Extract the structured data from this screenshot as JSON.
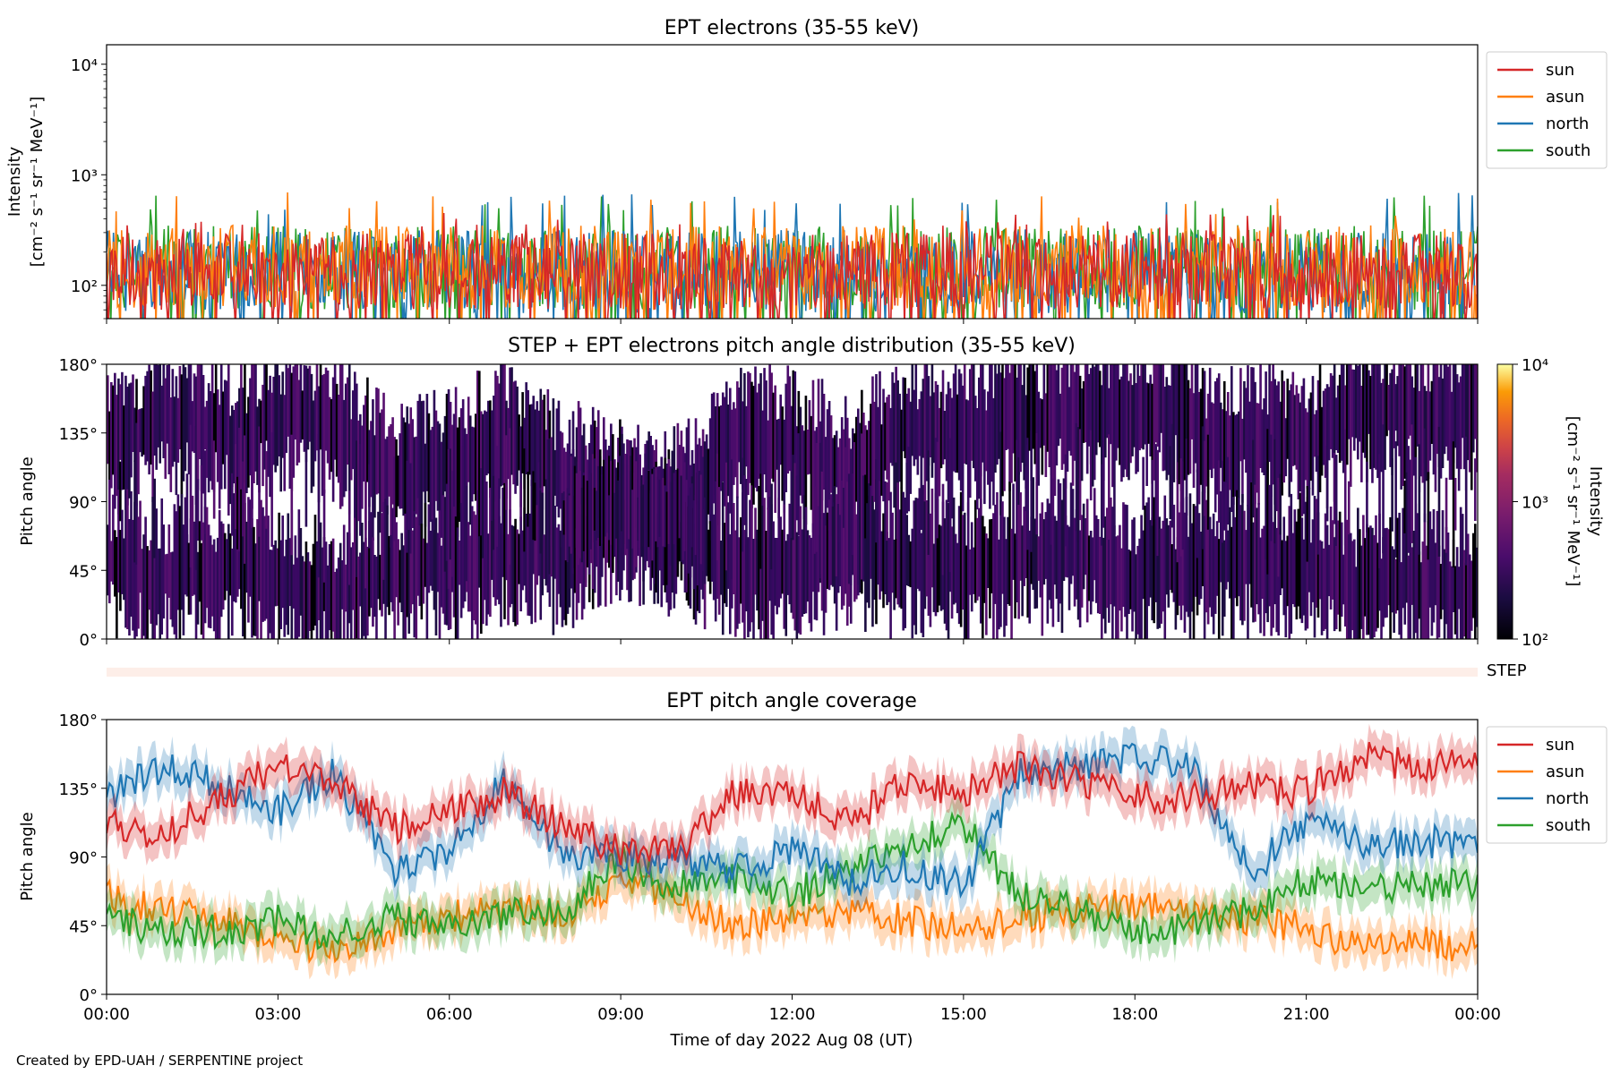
{
  "chart_data": [
    {
      "type": "line",
      "title": "EPT electrons (35-55 keV)",
      "ylabel_lines": [
        "Intensity",
        "[cm⁻² s⁻¹ sr⁻¹ MeV⁻¹]"
      ],
      "yscale": "log",
      "ylim": [
        50,
        15000
      ],
      "yticks": [
        {
          "value": 100,
          "label": "10²"
        },
        {
          "value": 1000,
          "label": "10³"
        },
        {
          "value": 10000,
          "label": "10⁴"
        }
      ],
      "xlim": [
        "2022-08-08 00:00",
        "2022-08-09 00:00"
      ],
      "legend_position": "upper right, outside",
      "series": [
        {
          "name": "south",
          "color": "#2ca02c",
          "typical_range": [
            60,
            350
          ],
          "max_peaks": [
            720,
            650,
            600
          ]
        },
        {
          "name": "north",
          "color": "#1f77b4",
          "typical_range": [
            55,
            320
          ],
          "max_peaks": [
            720,
            680,
            600
          ]
        },
        {
          "name": "asun",
          "color": "#ff7f0e",
          "typical_range": [
            60,
            350
          ],
          "max_peaks": [
            700,
            620,
            560
          ]
        },
        {
          "name": "sun",
          "color": "#d62728",
          "typical_range": [
            60,
            300
          ],
          "max_peaks": [
            470,
            450,
            430
          ]
        }
      ]
    },
    {
      "type": "heatmap",
      "title": "STEP + EPT electrons pitch angle distribution (35-55 keV)",
      "ylabel": "Pitch angle",
      "ylim": [
        0,
        180
      ],
      "yticks": [
        "0°",
        "45°",
        "90°",
        "135°",
        "180°"
      ],
      "xlim": [
        "2022-08-08 00:00",
        "2022-08-09 00:00"
      ],
      "colorbar": {
        "label_lines": [
          "Intensity",
          "[cm⁻² s⁻¹ sr⁻¹ MeV⁻¹]"
        ],
        "scale": "log",
        "range": [
          100,
          10000
        ],
        "ticks": [
          "10²",
          "10³",
          "10⁴"
        ],
        "colormap": "inferno"
      }
    },
    {
      "type": "band",
      "label": "STEP",
      "color": "#fdeee8"
    },
    {
      "type": "line",
      "title": "EPT pitch angle coverage",
      "ylabel": "Pitch angle",
      "ylim": [
        0,
        180
      ],
      "yticks": [
        "0°",
        "45°",
        "90°",
        "135°",
        "180°"
      ],
      "xlabel": "Time of day 2022 Aug 08 (UT)",
      "xticks": [
        "00:00",
        "03:00",
        "06:00",
        "09:00",
        "12:00",
        "15:00",
        "18:00",
        "21:00",
        "00:00"
      ],
      "xlim_hours": [
        0,
        24
      ],
      "legend_position": "upper right, outside",
      "band_halfwidth_deg": 12,
      "series": [
        {
          "name": "sun",
          "color": "#d62728",
          "hours": [
            0,
            1,
            2,
            3,
            4,
            5,
            6,
            7,
            8,
            9,
            10,
            11,
            12,
            13,
            14,
            15,
            16,
            17,
            18,
            19,
            20,
            21,
            22,
            23,
            24
          ],
          "values": [
            110,
            105,
            128,
            150,
            140,
            108,
            120,
            132,
            110,
            95,
            92,
            132,
            130,
            112,
            140,
            132,
            150,
            140,
            130,
            128,
            135,
            132,
            155,
            150,
            150
          ]
        },
        {
          "name": "asun",
          "color": "#ff7f0e",
          "hours": [
            0,
            1,
            2,
            3,
            4,
            5,
            6,
            7,
            8,
            9,
            10,
            11,
            12,
            13,
            14,
            15,
            16,
            17,
            18,
            19,
            20,
            21,
            22,
            23,
            24
          ],
          "values": [
            65,
            55,
            52,
            35,
            28,
            40,
            50,
            58,
            50,
            75,
            62,
            45,
            48,
            55,
            48,
            42,
            50,
            55,
            60,
            50,
            48,
            45,
            30,
            35,
            30
          ]
        },
        {
          "name": "north",
          "color": "#1f77b4",
          "hours": [
            0,
            1,
            2,
            3,
            4,
            5,
            6,
            7,
            8,
            9,
            10,
            11,
            12,
            13,
            14,
            15,
            16,
            17,
            18,
            19,
            20,
            21,
            22,
            23,
            24
          ],
          "values": [
            130,
            148,
            138,
            120,
            145,
            80,
            95,
            140,
            92,
            90,
            88,
            80,
            95,
            75,
            85,
            70,
            145,
            150,
            155,
            150,
            80,
            112,
            100,
            100,
            100
          ]
        },
        {
          "name": "south",
          "color": "#2ca02c",
          "hours": [
            0,
            1,
            2,
            3,
            4,
            5,
            6,
            7,
            8,
            9,
            10,
            11,
            12,
            13,
            14,
            15,
            16,
            17,
            18,
            19,
            20,
            21,
            22,
            23,
            24
          ],
          "values": [
            50,
            40,
            42,
            48,
            38,
            50,
            45,
            52,
            55,
            88,
            70,
            75,
            65,
            82,
            100,
            110,
            65,
            55,
            40,
            45,
            55,
            75,
            72,
            70,
            72
          ]
        }
      ]
    }
  ],
  "footer": "Created by EPD-UAH / SERPENTINE project"
}
